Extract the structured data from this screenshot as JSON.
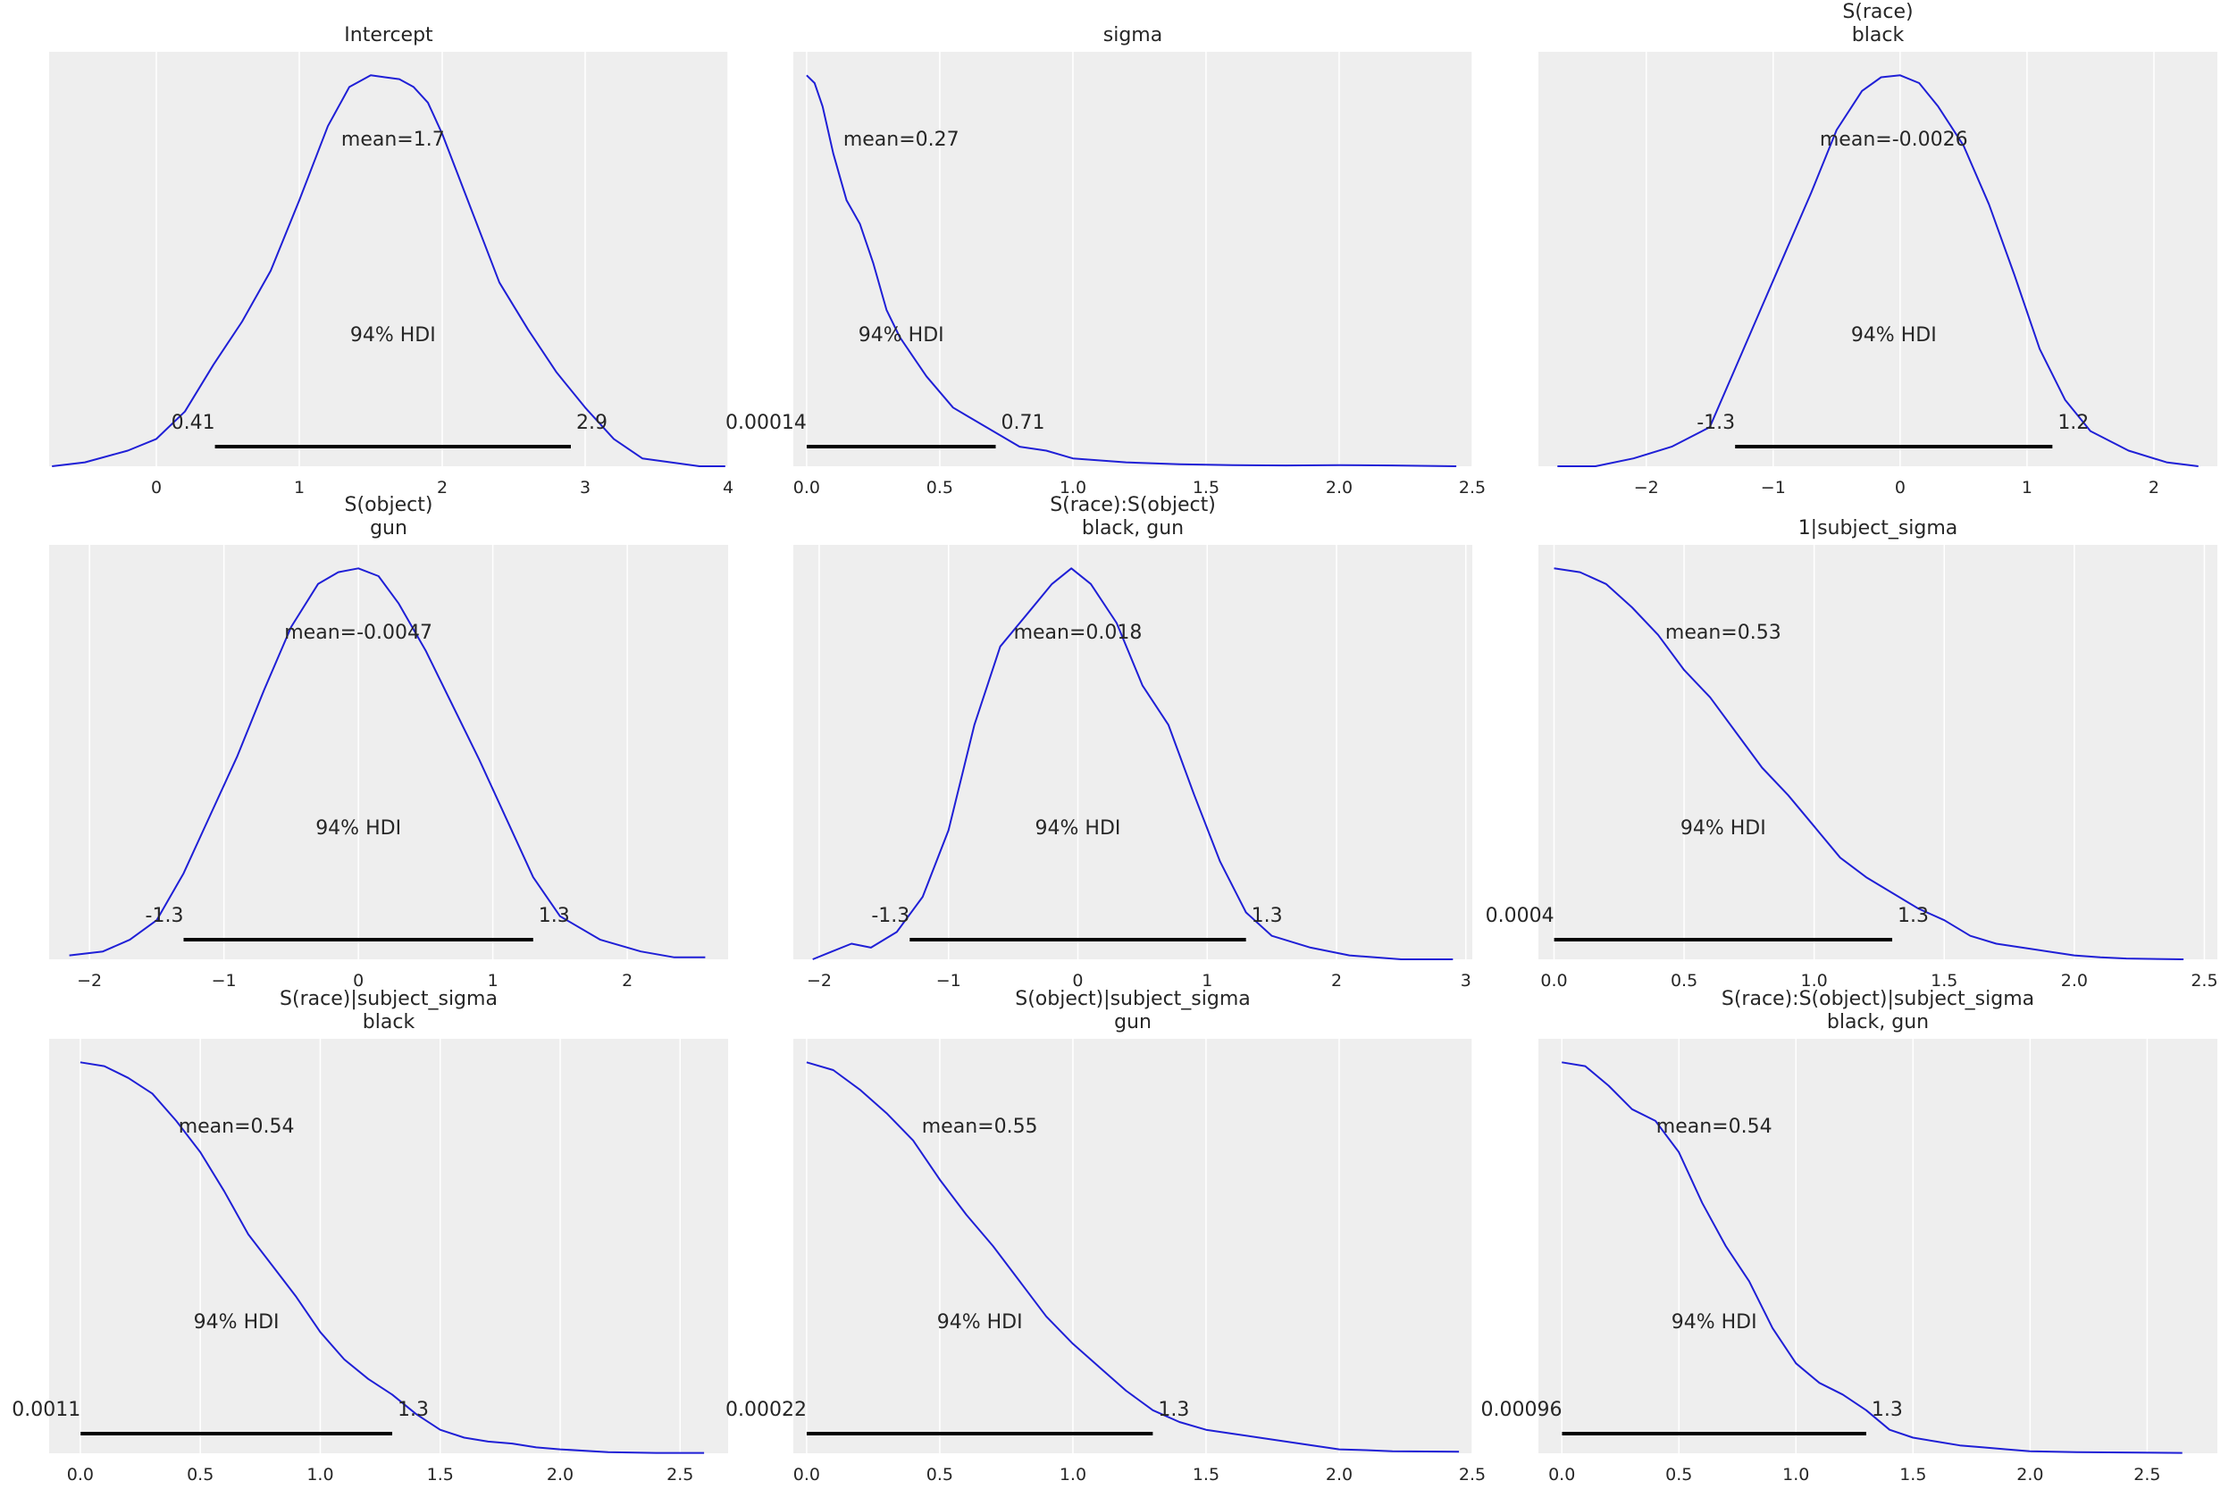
{
  "figure_title": "",
  "chart_data": [
    {
      "type": "line",
      "title_lines": [
        "Intercept"
      ],
      "xlim": [
        -0.75,
        4.0
      ],
      "xticks": [
        0,
        1,
        2,
        3,
        4
      ],
      "xtick_labels": [
        "0",
        "1",
        "2",
        "3",
        "4"
      ],
      "ylim": [
        0,
        1.06
      ],
      "x": [
        -0.73,
        -0.5,
        -0.2,
        0.0,
        0.2,
        0.4,
        0.6,
        0.8,
        1.0,
        1.2,
        1.35,
        1.5,
        1.6,
        1.7,
        1.8,
        1.9,
        2.0,
        2.2,
        2.4,
        2.6,
        2.8,
        3.0,
        3.2,
        3.4,
        3.6,
        3.8,
        3.98
      ],
      "y": [
        0.0,
        0.01,
        0.04,
        0.07,
        0.14,
        0.26,
        0.37,
        0.5,
        0.68,
        0.87,
        0.97,
        1.0,
        0.995,
        0.99,
        0.97,
        0.93,
        0.85,
        0.66,
        0.47,
        0.35,
        0.24,
        0.15,
        0.07,
        0.02,
        0.01,
        0.0,
        0.0
      ],
      "mean_label": "mean=1.7",
      "hdi_label": "94% HDI",
      "hdi": [
        0.41,
        2.9
      ],
      "hdi_low_label": "0.41",
      "hdi_high_label": "2.9"
    },
    {
      "type": "line",
      "title_lines": [
        "sigma"
      ],
      "xlim": [
        -0.05,
        2.5
      ],
      "xticks": [
        0.0,
        0.5,
        1.0,
        1.5,
        2.0,
        2.5
      ],
      "xtick_labels": [
        "0.0",
        "0.5",
        "1.0",
        "1.5",
        "2.0",
        "2.5"
      ],
      "ylim": [
        0,
        1.06
      ],
      "x": [
        0.0,
        0.03,
        0.06,
        0.1,
        0.15,
        0.2,
        0.25,
        0.3,
        0.35,
        0.4,
        0.45,
        0.5,
        0.55,
        0.6,
        0.7,
        0.8,
        0.9,
        1.0,
        1.2,
        1.4,
        1.6,
        1.8,
        2.0,
        2.2,
        2.44
      ],
      "y": [
        1.0,
        0.98,
        0.92,
        0.8,
        0.68,
        0.62,
        0.52,
        0.4,
        0.33,
        0.28,
        0.23,
        0.19,
        0.15,
        0.13,
        0.09,
        0.05,
        0.04,
        0.02,
        0.01,
        0.005,
        0.003,
        0.002,
        0.003,
        0.002,
        0.0
      ],
      "mean_label": "mean=0.27",
      "hdi_label": "94% HDI",
      "hdi": [
        0.00014,
        0.71
      ],
      "hdi_low_label": "0.00014",
      "hdi_high_label": "0.71"
    },
    {
      "type": "line",
      "title_lines": [
        "S(race)",
        "black"
      ],
      "xlim": [
        -2.85,
        2.5
      ],
      "xticks": [
        -2,
        -1,
        0,
        1,
        2
      ],
      "xtick_labels": [
        "−2",
        "−1",
        "0",
        "1",
        "2"
      ],
      "ylim": [
        0,
        1.06
      ],
      "x": [
        -2.7,
        -2.4,
        -2.1,
        -1.8,
        -1.5,
        -1.3,
        -1.1,
        -0.9,
        -0.7,
        -0.5,
        -0.3,
        -0.15,
        0.0,
        0.15,
        0.3,
        0.5,
        0.7,
        0.9,
        1.1,
        1.3,
        1.5,
        1.8,
        2.1,
        2.35
      ],
      "y": [
        0.0,
        0.0,
        0.02,
        0.05,
        0.1,
        0.25,
        0.4,
        0.55,
        0.7,
        0.86,
        0.96,
        0.995,
        1.0,
        0.98,
        0.92,
        0.82,
        0.67,
        0.49,
        0.3,
        0.17,
        0.09,
        0.04,
        0.01,
        0.0
      ],
      "mean_label": "mean=-0.0026",
      "hdi_label": "94% HDI",
      "hdi": [
        -1.3,
        1.2
      ],
      "hdi_low_label": "-1.3",
      "hdi_high_label": "1.2"
    },
    {
      "type": "line",
      "title_lines": [
        "S(object)",
        "gun"
      ],
      "xlim": [
        -2.3,
        2.75
      ],
      "xticks": [
        -2,
        -1,
        0,
        1,
        2
      ],
      "xtick_labels": [
        "−2",
        "−1",
        "0",
        "1",
        "2"
      ],
      "ylim": [
        0,
        1.06
      ],
      "x": [
        -2.15,
        -1.9,
        -1.7,
        -1.5,
        -1.3,
        -1.1,
        -0.9,
        -0.7,
        -0.5,
        -0.3,
        -0.15,
        0.0,
        0.15,
        0.3,
        0.5,
        0.7,
        0.9,
        1.1,
        1.3,
        1.5,
        1.8,
        2.1,
        2.35,
        2.58
      ],
      "y": [
        0.01,
        0.02,
        0.05,
        0.1,
        0.22,
        0.37,
        0.52,
        0.69,
        0.85,
        0.96,
        0.99,
        1.0,
        0.98,
        0.91,
        0.79,
        0.65,
        0.51,
        0.36,
        0.21,
        0.11,
        0.05,
        0.02,
        0.005,
        0.005
      ],
      "mean_label": "mean=-0.0047",
      "hdi_label": "94% HDI",
      "hdi": [
        -1.3,
        1.3
      ],
      "hdi_low_label": "-1.3",
      "hdi_high_label": "1.3"
    },
    {
      "type": "line",
      "title_lines": [
        "S(race):S(object)",
        "black, gun"
      ],
      "xlim": [
        -2.2,
        3.05
      ],
      "xticks": [
        -2,
        -1,
        0,
        1,
        2,
        3
      ],
      "xtick_labels": [
        "−2",
        "−1",
        "0",
        "1",
        "2",
        "3"
      ],
      "ylim": [
        0,
        1.06
      ],
      "x": [
        -2.05,
        -1.9,
        -1.75,
        -1.6,
        -1.4,
        -1.2,
        -1.0,
        -0.8,
        -0.6,
        -0.4,
        -0.2,
        -0.05,
        0.1,
        0.3,
        0.5,
        0.7,
        0.9,
        1.1,
        1.3,
        1.5,
        1.8,
        2.1,
        2.5,
        2.9
      ],
      "y": [
        0.0,
        0.02,
        0.04,
        0.03,
        0.07,
        0.16,
        0.33,
        0.6,
        0.8,
        0.88,
        0.96,
        1.0,
        0.96,
        0.86,
        0.7,
        0.6,
        0.42,
        0.25,
        0.12,
        0.06,
        0.03,
        0.01,
        0.0,
        0.0
      ],
      "mean_label": "mean=0.018",
      "hdi_label": "94% HDI",
      "hdi": [
        -1.3,
        1.3
      ],
      "hdi_low_label": "-1.3",
      "hdi_high_label": "1.3"
    },
    {
      "type": "line",
      "title_lines": [
        "1|subject_sigma"
      ],
      "xlim": [
        -0.06,
        2.55
      ],
      "xticks": [
        0.0,
        0.5,
        1.0,
        1.5,
        2.0,
        2.5
      ],
      "xtick_labels": [
        "0.0",
        "0.5",
        "1.0",
        "1.5",
        "2.0",
        "2.5"
      ],
      "ylim": [
        0,
        1.06
      ],
      "x": [
        0.0,
        0.1,
        0.2,
        0.3,
        0.4,
        0.5,
        0.6,
        0.7,
        0.8,
        0.9,
        1.0,
        1.1,
        1.2,
        1.3,
        1.4,
        1.5,
        1.6,
        1.7,
        1.8,
        1.9,
        2.0,
        2.1,
        2.2,
        2.42
      ],
      "y": [
        1.0,
        0.99,
        0.96,
        0.9,
        0.83,
        0.74,
        0.67,
        0.58,
        0.49,
        0.42,
        0.34,
        0.26,
        0.21,
        0.17,
        0.13,
        0.1,
        0.06,
        0.04,
        0.03,
        0.02,
        0.01,
        0.005,
        0.002,
        0.0
      ],
      "mean_label": "mean=0.53",
      "hdi_label": "94% HDI",
      "hdi": [
        0.0004,
        1.3
      ],
      "hdi_low_label": "0.0004",
      "hdi_high_label": "1.3"
    },
    {
      "type": "line",
      "title_lines": [
        "S(race)|subject_sigma",
        "black"
      ],
      "xlim": [
        -0.13,
        2.7
      ],
      "xticks": [
        0.0,
        0.5,
        1.0,
        1.5,
        2.0,
        2.5
      ],
      "xtick_labels": [
        "0.0",
        "0.5",
        "1.0",
        "1.5",
        "2.0",
        "2.5"
      ],
      "ylim": [
        0,
        1.06
      ],
      "x": [
        0.0,
        0.1,
        0.2,
        0.3,
        0.4,
        0.5,
        0.6,
        0.7,
        0.8,
        0.9,
        1.0,
        1.1,
        1.2,
        1.3,
        1.4,
        1.5,
        1.6,
        1.7,
        1.8,
        1.9,
        2.0,
        2.2,
        2.4,
        2.6
      ],
      "y": [
        1.0,
        0.99,
        0.96,
        0.92,
        0.85,
        0.77,
        0.67,
        0.56,
        0.48,
        0.4,
        0.31,
        0.24,
        0.19,
        0.15,
        0.1,
        0.06,
        0.04,
        0.03,
        0.025,
        0.015,
        0.01,
        0.003,
        0.001,
        0.001
      ],
      "mean_label": "mean=0.54",
      "hdi_label": "94% HDI",
      "hdi": [
        0.0011,
        1.3
      ],
      "hdi_low_label": "0.0011",
      "hdi_high_label": "1.3"
    },
    {
      "type": "line",
      "title_lines": [
        "S(object)|subject_sigma",
        "gun"
      ],
      "xlim": [
        -0.05,
        2.5
      ],
      "xticks": [
        0.0,
        0.5,
        1.0,
        1.5,
        2.0,
        2.5
      ],
      "xtick_labels": [
        "0.0",
        "0.5",
        "1.0",
        "1.5",
        "2.0",
        "2.5"
      ],
      "ylim": [
        0,
        1.06
      ],
      "x": [
        0.0,
        0.1,
        0.2,
        0.3,
        0.4,
        0.5,
        0.6,
        0.7,
        0.8,
        0.9,
        1.0,
        1.1,
        1.2,
        1.3,
        1.4,
        1.5,
        1.6,
        1.7,
        1.8,
        1.9,
        2.0,
        2.1,
        2.2,
        2.45
      ],
      "y": [
        1.0,
        0.98,
        0.93,
        0.87,
        0.8,
        0.7,
        0.61,
        0.53,
        0.44,
        0.35,
        0.28,
        0.22,
        0.16,
        0.11,
        0.08,
        0.06,
        0.05,
        0.04,
        0.03,
        0.02,
        0.01,
        0.008,
        0.005,
        0.004
      ],
      "mean_label": "mean=0.55",
      "hdi_label": "94% HDI",
      "hdi": [
        0.00022,
        1.3
      ],
      "hdi_low_label": "0.00022",
      "hdi_high_label": "1.3"
    },
    {
      "type": "line",
      "title_lines": [
        "S(race):S(object)|subject_sigma",
        "black, gun"
      ],
      "xlim": [
        -0.1,
        2.8
      ],
      "xticks": [
        0.0,
        0.5,
        1.0,
        1.5,
        2.0,
        2.5
      ],
      "xtick_labels": [
        "0.0",
        "0.5",
        "1.0",
        "1.5",
        "2.0",
        "2.5"
      ],
      "ylim": [
        0,
        1.06
      ],
      "x": [
        0.0,
        0.1,
        0.2,
        0.3,
        0.4,
        0.5,
        0.6,
        0.7,
        0.8,
        0.9,
        1.0,
        1.1,
        1.2,
        1.3,
        1.4,
        1.5,
        1.6,
        1.7,
        1.8,
        1.9,
        2.0,
        2.2,
        2.4,
        2.65
      ],
      "y": [
        1.0,
        0.99,
        0.94,
        0.88,
        0.85,
        0.77,
        0.64,
        0.53,
        0.44,
        0.32,
        0.23,
        0.18,
        0.15,
        0.11,
        0.06,
        0.04,
        0.03,
        0.02,
        0.015,
        0.01,
        0.005,
        0.003,
        0.002,
        0.001
      ],
      "mean_label": "mean=0.54",
      "hdi_label": "94% HDI",
      "hdi": [
        0.00096,
        1.3
      ],
      "hdi_low_label": "0.00096",
      "hdi_high_label": "1.3"
    }
  ]
}
